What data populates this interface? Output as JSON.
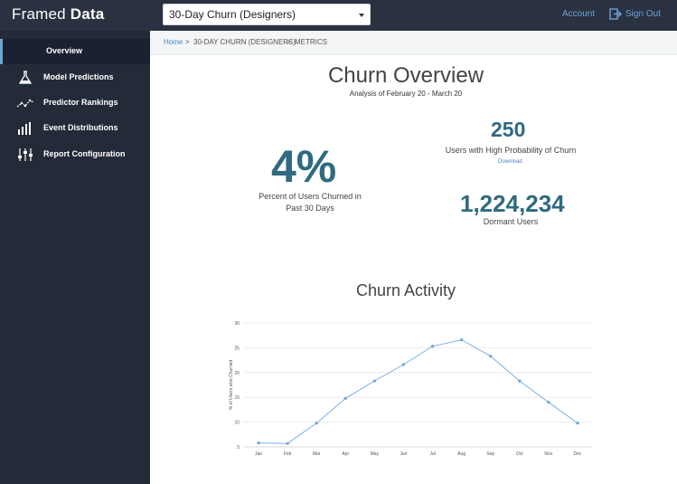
{
  "header": {
    "logo_light": "Framed",
    "logo_bold": "Data",
    "report_select_value": "30-Day Churn (Designers)",
    "account_label": "Account",
    "signout_label": "Sign Out"
  },
  "sidebar": {
    "items": [
      {
        "label": "Overview",
        "icon": "none",
        "active": true
      },
      {
        "label": "Model Predictions",
        "icon": "flask-icon"
      },
      {
        "label": "Predictor Rankings",
        "icon": "trend-line-icon"
      },
      {
        "label": "Event Distributions",
        "icon": "bar-chart-icon"
      },
      {
        "label": "Report Configuration",
        "icon": "sliders-icon"
      }
    ]
  },
  "breadcrumb": {
    "home": "Home",
    "report": "30-DAY CHURN (DESIGNERS)",
    "current": "METRICS",
    "separator": ">"
  },
  "overview": {
    "title": "Churn Overview",
    "subtitle": "Analysis of February 20 - March 20",
    "churn_percent": "4%",
    "churn_percent_caption": "Percent of Users Churned in Past 30 Days",
    "high_prob_count": "250",
    "high_prob_caption": "Users with High Probability of Churn",
    "download_label": "Download",
    "dormant_count": "1,224,234",
    "dormant_caption": "Dormant Users"
  },
  "activity": {
    "title": "Churn Activity"
  },
  "colors": {
    "accent": "#6fa3d6",
    "stat": "#2f6a80",
    "sidebar": "#232a38",
    "topbar": "#2a3140"
  },
  "chart_data": {
    "type": "line",
    "categories": [
      "Jan",
      "Feb",
      "Mar",
      "Apr",
      "May",
      "Jun",
      "Jul",
      "Aug",
      "Sep",
      "Oct",
      "Nov",
      "Dec"
    ],
    "series": [
      {
        "values": [
          5.8,
          5.7,
          9.8,
          14.8,
          18.3,
          21.6,
          25.3,
          26.6,
          23.3,
          18.3,
          14.0,
          9.8
        ]
      }
    ],
    "ylabel": "% of Users who Churned",
    "yticks": [
      5,
      10,
      15,
      20,
      25,
      30
    ],
    "ylim": [
      5,
      30
    ],
    "grid": true
  }
}
